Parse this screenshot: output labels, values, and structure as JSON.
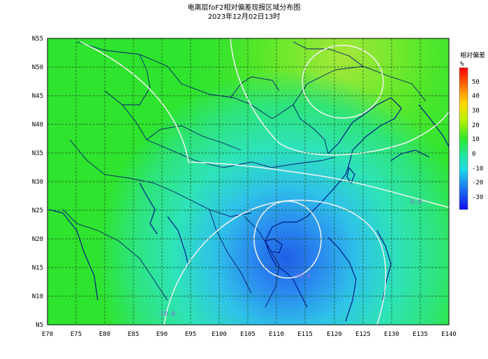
{
  "title": "电离层foF2相对偏差现报区域分布图",
  "datetime": "2023年12月02日13时",
  "x_ticks": [
    "E70",
    "E75",
    "E80",
    "E85",
    "E90",
    "E95",
    "E100",
    "E105",
    "E110",
    "E115",
    "E120",
    "E125",
    "E130",
    "E135",
    "E140"
  ],
  "y_ticks": [
    "N55",
    "N50",
    "N45",
    "N40",
    "N35",
    "N30",
    "N25",
    "N20",
    "N15",
    "N10",
    "N5"
  ],
  "colorbar": {
    "label": "相对偏差",
    "unit": "%",
    "ticks": [
      "50",
      "40",
      "30",
      "20",
      "10",
      "0",
      "-10",
      "-20",
      "-30"
    ]
  },
  "contour_labels": [
    "-10.0",
    "0.0",
    "-10.0"
  ],
  "colors": {
    "map_green": "#28e628",
    "map_yellowgreen": "#8ee82c",
    "map_cyan": "#25e3c8",
    "map_blue": "#2a7cf2",
    "coast": "#001a88",
    "border": "#0b1a6e",
    "grid": "#1a4d1a",
    "contour": "#f4f4f4"
  }
}
